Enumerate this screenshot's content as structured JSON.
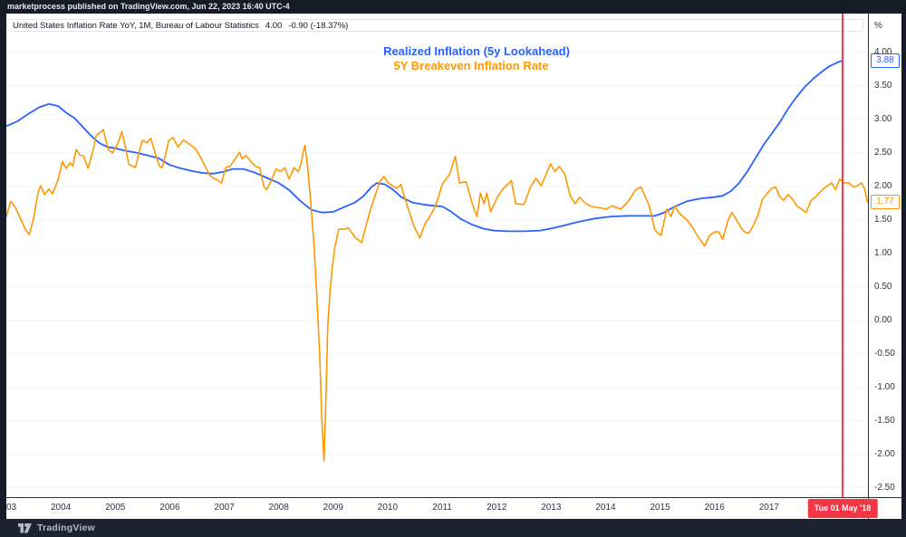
{
  "header": {
    "text": "marketprocess published on TradingView.com, Jun 22, 2023 16:40 UTC-4"
  },
  "legend": {
    "text": "United States Inflation Rate YoY, 1M, Bureau of Labour Statistics",
    "value": "4.00",
    "change": "-0.90 (-18.37%)"
  },
  "titles": [
    {
      "text": "Realized Inflation (5y Lookahead)",
      "color": "#2962ff"
    },
    {
      "text": "5Y Breakeven Inflation Rate",
      "color": "#ff9800"
    }
  ],
  "footer": {
    "brand": "TradingView"
  },
  "chart_data": {
    "type": "line",
    "xlim": [
      2003.0,
      2018.815
    ],
    "ylim": [
      -2.64,
      4.58
    ],
    "grid_color": "#f0f3fa",
    "y_axis_unit": "%",
    "y_ticks": [
      "4.00",
      "3.50",
      "3.00",
      "2.50",
      "2.00",
      "1.50",
      "1.00",
      "0.50",
      "0.00",
      "-0.50",
      "-1.00",
      "-1.50",
      "-2.00",
      "-2.50"
    ],
    "x_ticks": [
      {
        "label": "03",
        "year": 2003,
        "align": "left"
      },
      {
        "label": "2004",
        "year": 2004
      },
      {
        "label": "2005",
        "year": 2005
      },
      {
        "label": "2006",
        "year": 2006
      },
      {
        "label": "2007",
        "year": 2007
      },
      {
        "label": "2008",
        "year": 2008
      },
      {
        "label": "2009",
        "year": 2009
      },
      {
        "label": "2010",
        "year": 2010
      },
      {
        "label": "2011",
        "year": 2011
      },
      {
        "label": "2012",
        "year": 2012
      },
      {
        "label": "2013",
        "year": 2013
      },
      {
        "label": "2014",
        "year": 2014
      },
      {
        "label": "2015",
        "year": 2015
      },
      {
        "label": "2016",
        "year": 2016
      },
      {
        "label": "2017",
        "year": 2017
      }
    ],
    "price_labels": [
      {
        "label": "3.88",
        "value": 3.88,
        "color": "#2962ff"
      },
      {
        "label": "1.77",
        "value": 1.77,
        "color": "#ff9800"
      }
    ],
    "marker": {
      "x": 2018.35,
      "label": "Tue 01 May '18",
      "color": "#f23645"
    },
    "series": [
      {
        "name": "Realized Inflation (5y Lookahead)",
        "color": "#2962ff",
        "width": 1.8,
        "points": [
          [
            2003.0,
            2.9
          ],
          [
            2003.2,
            2.97
          ],
          [
            2003.4,
            3.08
          ],
          [
            2003.6,
            3.18
          ],
          [
            2003.78,
            3.23
          ],
          [
            2003.95,
            3.2
          ],
          [
            2004.1,
            3.1
          ],
          [
            2004.25,
            3.02
          ],
          [
            2004.4,
            2.89
          ],
          [
            2004.55,
            2.76
          ],
          [
            2004.7,
            2.65
          ],
          [
            2004.85,
            2.59
          ],
          [
            2005.0,
            2.57
          ],
          [
            2005.2,
            2.53
          ],
          [
            2005.4,
            2.5
          ],
          [
            2005.6,
            2.46
          ],
          [
            2005.8,
            2.42
          ],
          [
            2006.0,
            2.32
          ],
          [
            2006.2,
            2.27
          ],
          [
            2006.4,
            2.23
          ],
          [
            2006.6,
            2.2
          ],
          [
            2006.8,
            2.19
          ],
          [
            2007.0,
            2.22
          ],
          [
            2007.15,
            2.26
          ],
          [
            2007.35,
            2.26
          ],
          [
            2007.55,
            2.21
          ],
          [
            2007.75,
            2.14
          ],
          [
            2008.0,
            2.05
          ],
          [
            2008.2,
            1.94
          ],
          [
            2008.4,
            1.78
          ],
          [
            2008.6,
            1.65
          ],
          [
            2008.8,
            1.61
          ],
          [
            2009.0,
            1.62
          ],
          [
            2009.2,
            1.69
          ],
          [
            2009.4,
            1.76
          ],
          [
            2009.55,
            1.85
          ],
          [
            2009.7,
            1.99
          ],
          [
            2009.8,
            2.05
          ],
          [
            2009.95,
            2.03
          ],
          [
            2010.1,
            1.95
          ],
          [
            2010.25,
            1.84
          ],
          [
            2010.45,
            1.76
          ],
          [
            2010.65,
            1.73
          ],
          [
            2010.85,
            1.71
          ],
          [
            2011.0,
            1.7
          ],
          [
            2011.15,
            1.63
          ],
          [
            2011.35,
            1.51
          ],
          [
            2011.55,
            1.43
          ],
          [
            2011.75,
            1.37
          ],
          [
            2011.95,
            1.34
          ],
          [
            2012.2,
            1.33
          ],
          [
            2012.5,
            1.33
          ],
          [
            2012.8,
            1.34
          ],
          [
            2013.0,
            1.37
          ],
          [
            2013.2,
            1.41
          ],
          [
            2013.5,
            1.47
          ],
          [
            2013.8,
            1.52
          ],
          [
            2014.1,
            1.55
          ],
          [
            2014.4,
            1.56
          ],
          [
            2014.7,
            1.56
          ],
          [
            2014.9,
            1.56
          ],
          [
            2015.05,
            1.6
          ],
          [
            2015.25,
            1.69
          ],
          [
            2015.5,
            1.78
          ],
          [
            2015.75,
            1.82
          ],
          [
            2016.0,
            1.84
          ],
          [
            2016.15,
            1.86
          ],
          [
            2016.3,
            1.93
          ],
          [
            2016.45,
            2.05
          ],
          [
            2016.6,
            2.22
          ],
          [
            2016.75,
            2.42
          ],
          [
            2016.9,
            2.62
          ],
          [
            2017.05,
            2.79
          ],
          [
            2017.2,
            2.96
          ],
          [
            2017.35,
            3.16
          ],
          [
            2017.5,
            3.33
          ],
          [
            2017.65,
            3.48
          ],
          [
            2017.8,
            3.6
          ],
          [
            2017.95,
            3.7
          ],
          [
            2018.1,
            3.79
          ],
          [
            2018.25,
            3.85
          ],
          [
            2018.35,
            3.88
          ]
        ]
      },
      {
        "name": "5Y Breakeven Inflation Rate",
        "color": "#ff9800",
        "width": 1.6,
        "points": [
          [
            2003.0,
            1.55
          ],
          [
            2003.08,
            1.78
          ],
          [
            2003.17,
            1.68
          ],
          [
            2003.27,
            1.5
          ],
          [
            2003.35,
            1.36
          ],
          [
            2003.42,
            1.28
          ],
          [
            2003.5,
            1.52
          ],
          [
            2003.58,
            1.9
          ],
          [
            2003.63,
            2.01
          ],
          [
            2003.7,
            1.88
          ],
          [
            2003.78,
            1.96
          ],
          [
            2003.85,
            1.89
          ],
          [
            2003.95,
            2.1
          ],
          [
            2004.03,
            2.37
          ],
          [
            2004.1,
            2.27
          ],
          [
            2004.17,
            2.35
          ],
          [
            2004.22,
            2.3
          ],
          [
            2004.28,
            2.55
          ],
          [
            2004.35,
            2.47
          ],
          [
            2004.42,
            2.45
          ],
          [
            2004.5,
            2.27
          ],
          [
            2004.58,
            2.5
          ],
          [
            2004.65,
            2.76
          ],
          [
            2004.72,
            2.8
          ],
          [
            2004.78,
            2.85
          ],
          [
            2004.87,
            2.55
          ],
          [
            2004.95,
            2.5
          ],
          [
            2005.05,
            2.65
          ],
          [
            2005.12,
            2.82
          ],
          [
            2005.18,
            2.6
          ],
          [
            2005.25,
            2.33
          ],
          [
            2005.32,
            2.3
          ],
          [
            2005.37,
            2.28
          ],
          [
            2005.45,
            2.55
          ],
          [
            2005.5,
            2.69
          ],
          [
            2005.58,
            2.65
          ],
          [
            2005.65,
            2.72
          ],
          [
            2005.73,
            2.5
          ],
          [
            2005.81,
            2.3
          ],
          [
            2005.86,
            2.28
          ],
          [
            2005.93,
            2.5
          ],
          [
            2005.98,
            2.68
          ],
          [
            2006.06,
            2.73
          ],
          [
            2006.15,
            2.59
          ],
          [
            2006.25,
            2.69
          ],
          [
            2006.31,
            2.66
          ],
          [
            2006.41,
            2.6
          ],
          [
            2006.48,
            2.55
          ],
          [
            2006.56,
            2.44
          ],
          [
            2006.65,
            2.3
          ],
          [
            2006.73,
            2.17
          ],
          [
            2006.81,
            2.12
          ],
          [
            2006.86,
            2.1
          ],
          [
            2006.95,
            2.05
          ],
          [
            2007.03,
            2.28
          ],
          [
            2007.11,
            2.3
          ],
          [
            2007.2,
            2.41
          ],
          [
            2007.28,
            2.51
          ],
          [
            2007.33,
            2.41
          ],
          [
            2007.4,
            2.46
          ],
          [
            2007.48,
            2.38
          ],
          [
            2007.57,
            2.3
          ],
          [
            2007.65,
            2.28
          ],
          [
            2007.73,
            1.99
          ],
          [
            2007.78,
            1.95
          ],
          [
            2007.87,
            2.1
          ],
          [
            2007.95,
            2.26
          ],
          [
            2008.03,
            2.22
          ],
          [
            2008.11,
            2.28
          ],
          [
            2008.19,
            2.11
          ],
          [
            2008.28,
            2.28
          ],
          [
            2008.36,
            2.22
          ],
          [
            2008.41,
            2.34
          ],
          [
            2008.44,
            2.47
          ],
          [
            2008.48,
            2.61
          ],
          [
            2008.53,
            2.3
          ],
          [
            2008.58,
            1.84
          ],
          [
            2008.64,
            1.23
          ],
          [
            2008.69,
            0.5
          ],
          [
            2008.75,
            -0.49
          ],
          [
            2008.79,
            -1.47
          ],
          [
            2008.83,
            -2.1
          ],
          [
            2008.87,
            -1.03
          ],
          [
            2008.9,
            -0.08
          ],
          [
            2008.94,
            0.42
          ],
          [
            2008.98,
            0.77
          ],
          [
            2009.03,
            1.09
          ],
          [
            2009.1,
            1.36
          ],
          [
            2009.2,
            1.36
          ],
          [
            2009.28,
            1.38
          ],
          [
            2009.4,
            1.24
          ],
          [
            2009.52,
            1.16
          ],
          [
            2009.6,
            1.41
          ],
          [
            2009.68,
            1.64
          ],
          [
            2009.76,
            1.84
          ],
          [
            2009.85,
            2.06
          ],
          [
            2009.93,
            2.15
          ],
          [
            2010.0,
            2.06
          ],
          [
            2010.1,
            2.0
          ],
          [
            2010.17,
            1.97
          ],
          [
            2010.24,
            2.03
          ],
          [
            2010.32,
            1.81
          ],
          [
            2010.4,
            1.61
          ],
          [
            2010.48,
            1.41
          ],
          [
            2010.59,
            1.23
          ],
          [
            2010.69,
            1.45
          ],
          [
            2010.77,
            1.54
          ],
          [
            2010.85,
            1.66
          ],
          [
            2010.93,
            1.84
          ],
          [
            2011.0,
            2.03
          ],
          [
            2011.14,
            2.19
          ],
          [
            2011.24,
            2.45
          ],
          [
            2011.32,
            2.05
          ],
          [
            2011.44,
            2.07
          ],
          [
            2011.55,
            1.75
          ],
          [
            2011.64,
            1.55
          ],
          [
            2011.7,
            1.9
          ],
          [
            2011.77,
            1.74
          ],
          [
            2011.82,
            1.9
          ],
          [
            2011.89,
            1.62
          ],
          [
            2012.0,
            1.82
          ],
          [
            2012.1,
            1.95
          ],
          [
            2012.18,
            2.01
          ],
          [
            2012.27,
            2.09
          ],
          [
            2012.35,
            1.74
          ],
          [
            2012.5,
            1.73
          ],
          [
            2012.62,
            1.99
          ],
          [
            2012.72,
            2.12
          ],
          [
            2012.82,
            2.01
          ],
          [
            2012.99,
            2.34
          ],
          [
            2013.07,
            2.22
          ],
          [
            2013.15,
            2.3
          ],
          [
            2013.25,
            2.18
          ],
          [
            2013.35,
            1.86
          ],
          [
            2013.44,
            1.74
          ],
          [
            2013.52,
            1.84
          ],
          [
            2013.64,
            1.74
          ],
          [
            2013.74,
            1.7
          ],
          [
            2013.9,
            1.68
          ],
          [
            2014.0,
            1.66
          ],
          [
            2014.12,
            1.71
          ],
          [
            2014.28,
            1.66
          ],
          [
            2014.42,
            1.78
          ],
          [
            2014.55,
            1.95
          ],
          [
            2014.65,
            1.99
          ],
          [
            2014.8,
            1.71
          ],
          [
            2014.9,
            1.36
          ],
          [
            2014.97,
            1.29
          ],
          [
            2015.02,
            1.27
          ],
          [
            2015.12,
            1.66
          ],
          [
            2015.2,
            1.55
          ],
          [
            2015.27,
            1.71
          ],
          [
            2015.35,
            1.6
          ],
          [
            2015.5,
            1.49
          ],
          [
            2015.6,
            1.38
          ],
          [
            2015.7,
            1.24
          ],
          [
            2015.82,
            1.11
          ],
          [
            2015.9,
            1.26
          ],
          [
            2016.0,
            1.32
          ],
          [
            2016.08,
            1.32
          ],
          [
            2016.15,
            1.21
          ],
          [
            2016.25,
            1.5
          ],
          [
            2016.32,
            1.61
          ],
          [
            2016.4,
            1.5
          ],
          [
            2016.48,
            1.39
          ],
          [
            2016.55,
            1.32
          ],
          [
            2016.63,
            1.3
          ],
          [
            2016.72,
            1.43
          ],
          [
            2016.8,
            1.58
          ],
          [
            2016.88,
            1.81
          ],
          [
            2016.97,
            1.9
          ],
          [
            2017.05,
            1.97
          ],
          [
            2017.12,
            1.99
          ],
          [
            2017.2,
            1.84
          ],
          [
            2017.27,
            1.79
          ],
          [
            2017.35,
            1.88
          ],
          [
            2017.43,
            1.81
          ],
          [
            2017.52,
            1.7
          ],
          [
            2017.6,
            1.66
          ],
          [
            2017.68,
            1.61
          ],
          [
            2017.77,
            1.79
          ],
          [
            2017.85,
            1.84
          ],
          [
            2017.98,
            1.95
          ],
          [
            2018.07,
            2.01
          ],
          [
            2018.15,
            2.05
          ],
          [
            2018.22,
            1.95
          ],
          [
            2018.3,
            2.11
          ],
          [
            2018.38,
            2.05
          ],
          [
            2018.47,
            2.05
          ],
          [
            2018.55,
            1.99
          ],
          [
            2018.62,
            2.01
          ],
          [
            2018.7,
            2.05
          ],
          [
            2018.76,
            1.95
          ],
          [
            2018.8,
            1.77
          ]
        ]
      }
    ]
  }
}
